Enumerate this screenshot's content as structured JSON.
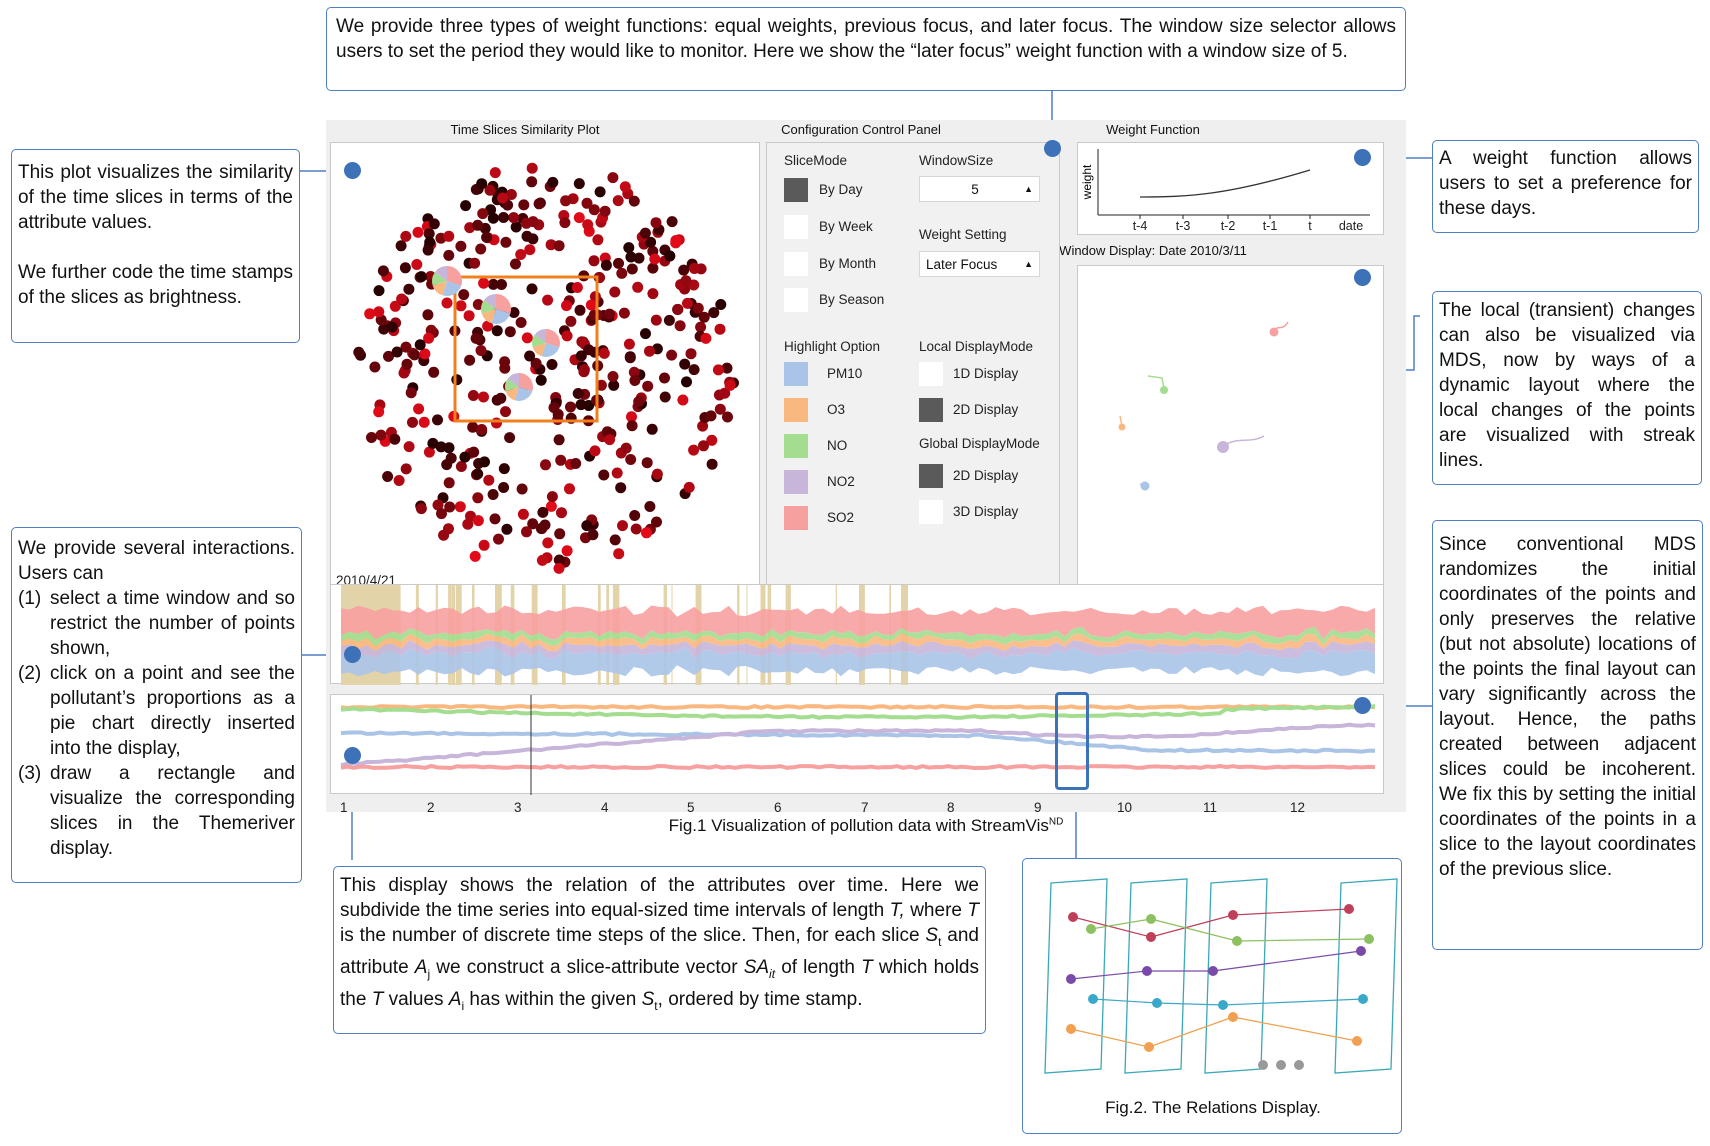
{
  "callouts": {
    "top": "We provide three types of weight functions: equal weights, previous focus, and later focus. The window size selector allows users to set the period they would like to monitor. Here we show the “later focus” weight function with a window size of 5.",
    "left_top_p1": "This plot visualizes the similarity of the time slices in terms of the attribute values.",
    "left_top_p2": "We further code the time stamps of the slices as brightness.",
    "left_mid_intro": "We provide several interactions. Users can",
    "left_mid_items": [
      "select a time window and so restrict the number of points shown,",
      "click on a point and see the pollutant’s proportions as a pie chart directly inserted into the display,",
      "draw a rectangle and visualize the corresponding slices in the Themeriver display."
    ],
    "right_top": "A weight function allows users to set a preference for these days.",
    "right_mid": "The local (transient) changes can also be visualized via MDS, now by ways of a dynamic layout where the local changes of the points are visualized with streak lines.",
    "right_bottom": "Since conventional MDS randomizes the initial coordinates of the points and only preserves the relative (but not absolute) locations of the points the final layout can vary significantly across the layout. Hence, the paths created between adjacent slices could be incoherent. We fix this by setting the initial coordinates of the points in a slice to the layout coordinates of the previous slice.",
    "bottom_pre": "This display shows the relation of the attributes over time.  Here we subdivide the time series into equal-sized time intervals of length ",
    "bottom_T": "T,",
    "bottom_mid1": " where ",
    "bottom_T2": "T",
    "bottom_mid2": " is the number of discrete time steps of the slice. Then, for each slice ",
    "bottom_S": "S",
    "bottom_t": "t",
    "bottom_and": " and attribute ",
    "bottom_A": "A",
    "bottom_j": "j",
    "bottom_vec": " we construct a slice-attribute vector ",
    "bottom_SA": "SA",
    "bottom_it": "it",
    "bottom_len": " of length ",
    "bottom_T3": "T",
    "bottom_which": " which holds the ",
    "bottom_T4": "T",
    "bottom_values": " values ",
    "bottom_A2": "A",
    "bottom_i": "i",
    "bottom_within": " has within the given ",
    "bottom_S2": "S",
    "bottom_t2": "t",
    "bottom_end": ", ordered by time stamp."
  },
  "app": {
    "panel_titles": {
      "similarity": "Time Slices Similarity Plot",
      "config": "Configuration Control Panel",
      "weight": "Weight Function",
      "window": "Window Display: Date 2010/3/11"
    },
    "similarity_date": "2010/4/21",
    "slice_mode": {
      "label": "SliceMode",
      "options": [
        "By Day",
        "By Week",
        "By Month",
        "By Season"
      ],
      "selected": "By Day"
    },
    "window_size": {
      "label": "WindowSize",
      "value": "5"
    },
    "weight_setting": {
      "label": "Weight Setting",
      "value": "Later Focus"
    },
    "highlight": {
      "label": "Highlight Option",
      "items": [
        {
          "name": "PM10",
          "color": "#aac4e8"
        },
        {
          "name": "O3",
          "color": "#f9b880"
        },
        {
          "name": "NO",
          "color": "#a3dd8f"
        },
        {
          "name": "NO2",
          "color": "#c7b5da"
        },
        {
          "name": "SO2",
          "color": "#f7a0a0"
        }
      ]
    },
    "local_mode": {
      "label": "Local DisplayMode",
      "options": [
        "1D Display",
        "2D Display"
      ],
      "selected": "2D Display"
    },
    "global_mode": {
      "label": "Global DisplayMode",
      "options": [
        "2D Display",
        "3D Display"
      ],
      "selected": "2D Display"
    },
    "weight_chart": {
      "ylabel": "weight",
      "xticks": [
        "t-4",
        "t-3",
        "t-2",
        "t-1",
        "t",
        "date"
      ]
    },
    "timeline_ticks": [
      "1",
      "2",
      "3",
      "4",
      "5",
      "6",
      "7",
      "8",
      "9",
      "10",
      "11",
      "12"
    ]
  },
  "captions": {
    "fig1_main": "Fig.1 Visualization of pollution data with StreamVis",
    "fig1_sup": "ND",
    "fig2": "Fig.2. The Relations Display."
  }
}
